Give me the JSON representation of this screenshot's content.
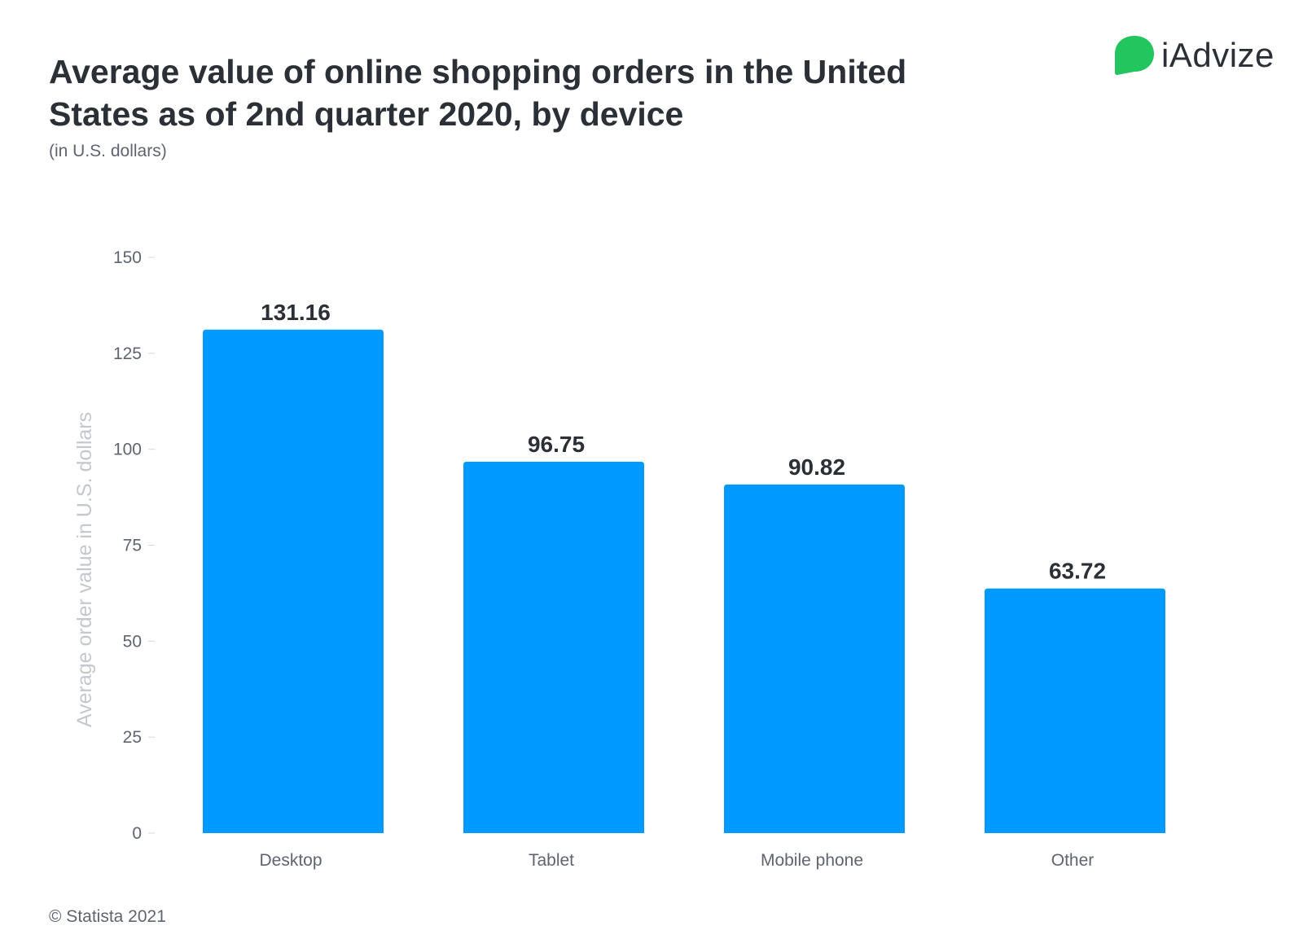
{
  "header": {
    "title": "Average value of online shopping orders in the United States as of 2nd quarter 2020, by device",
    "subtitle": "(in U.S. dollars)"
  },
  "logo": {
    "icon": "speech-bubble-icon",
    "text": "iAdvize",
    "color": "#22c55e"
  },
  "footer": {
    "copyright": "© Statista 2021"
  },
  "chart_data": {
    "type": "bar",
    "categories": [
      "Desktop",
      "Tablet",
      "Mobile phone",
      "Other"
    ],
    "values": [
      131.16,
      96.75,
      90.82,
      63.72
    ],
    "data_labels": [
      "131.16",
      "96.75",
      "90.82",
      "63.72"
    ],
    "xlabel": "",
    "ylabel": "Average order value in U.S. dollars",
    "ylim": [
      0,
      150
    ],
    "yticks": [
      0,
      25,
      50,
      75,
      100,
      125,
      150
    ],
    "grid": false,
    "bar_color": "#0099ff"
  }
}
